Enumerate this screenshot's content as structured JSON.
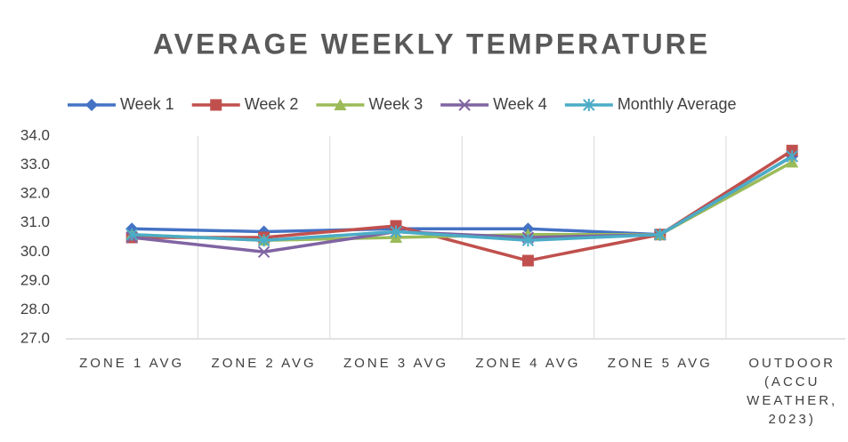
{
  "chart_data": {
    "type": "line",
    "title": "AVERAGE WEEKLY TEMPERATURE",
    "categories": [
      "ZONE 1 AVG",
      "ZONE 2 AVG",
      "ZONE 3 AVG",
      "ZONE 4 AVG",
      "ZONE 5 AVG",
      "OUTDOOR (ACCU WEATHER, 2023)"
    ],
    "series": [
      {
        "name": "Week 1",
        "color": "#4472c4",
        "marker": "diamond",
        "values": [
          30.8,
          30.7,
          30.8,
          30.8,
          30.6,
          33.3
        ]
      },
      {
        "name": "Week 2",
        "color": "#c0504d",
        "marker": "square",
        "values": [
          30.5,
          30.5,
          30.9,
          29.7,
          30.6,
          33.5
        ]
      },
      {
        "name": "Week 3",
        "color": "#9bbb59",
        "marker": "triangle",
        "values": [
          30.6,
          30.4,
          30.5,
          30.6,
          30.6,
          33.1
        ]
      },
      {
        "name": "Week 4",
        "color": "#8064a2",
        "marker": "x",
        "values": [
          30.5,
          30.0,
          30.7,
          30.5,
          30.6,
          33.3
        ]
      },
      {
        "name": "Monthly Average",
        "color": "#4bacc6",
        "marker": "star",
        "values": [
          30.6,
          30.4,
          30.7,
          30.4,
          30.6,
          33.3
        ]
      }
    ],
    "ylim": [
      27,
      34
    ],
    "yticks": [
      {
        "value": 27,
        "label": "27.0"
      },
      {
        "value": 28,
        "label": "28.0"
      },
      {
        "value": 29,
        "label": "29.0"
      },
      {
        "value": 30,
        "label": "30.0"
      },
      {
        "value": 31,
        "label": "31.0"
      },
      {
        "value": 32,
        "label": "32.0"
      },
      {
        "value": 33,
        "label": "33.0"
      },
      {
        "value": 34,
        "label": "34.0"
      }
    ],
    "legend": "top"
  }
}
